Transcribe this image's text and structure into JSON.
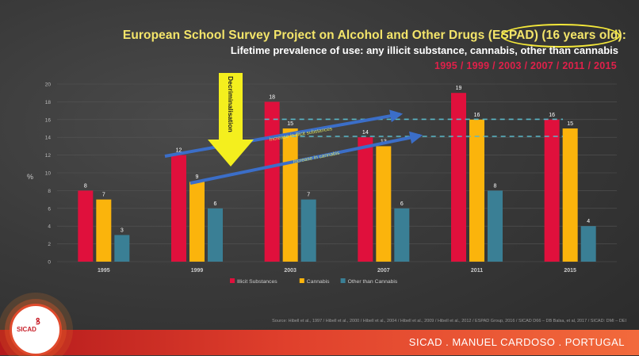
{
  "slide": {
    "title": "European School Survey Project on Alcohol and Other Drugs (ESPAD) (16 years old):",
    "subtitle": "Lifetime prevalence of use: any illicit substance, cannabis, other than cannabis",
    "years_line": "1995 / 1999 / 2003 / 2007 / 2011 / 2015",
    "source": "Source: Hibell et al., 1997 / Hibell et al., 2000 / Hibell et al., 2004 / Hibell et al., 2009 / Hibell et al., 2012 / ESPAD Group, 2016 / SICAD D66 – DB Balsa, et al, 2017 / SICAD: DMI – DEI",
    "footer": "SICAD . MANUEL CARDOSO . PORTUGAL",
    "logo_text": "SICAD"
  },
  "colors": {
    "illicit": "#e0103c",
    "cannabis": "#fbb40c",
    "other": "#3a7f95",
    "arrow": "#3b6ec8",
    "dashed": "#5ab8c8",
    "decrim": "#f4ef1e",
    "title": "#f4e56a",
    "years": "#e0204a"
  },
  "chart_data": {
    "type": "bar",
    "categories": [
      "1995",
      "1999",
      "2003",
      "2007",
      "2011",
      "2015"
    ],
    "series": [
      {
        "name": "Illicit Substances",
        "values": [
          8,
          12,
          18,
          14,
          19,
          16
        ]
      },
      {
        "name": "Cannabis",
        "values": [
          7,
          9,
          15,
          13,
          16,
          15
        ]
      },
      {
        "name": "Other than Cannabis",
        "values": [
          3,
          6,
          7,
          6,
          8,
          4
        ]
      }
    ],
    "ylabel": "%",
    "ylim": [
      0,
      20
    ],
    "yticks": [
      0,
      2,
      4,
      6,
      8,
      10,
      12,
      14,
      16,
      18,
      20
    ],
    "legend_position": "bottom",
    "annotations": {
      "decriminalisation": "Decriminalisation",
      "increase_illicit": "Increase in illicit substances",
      "increase_cannabis": "Increase in cannabis"
    }
  }
}
